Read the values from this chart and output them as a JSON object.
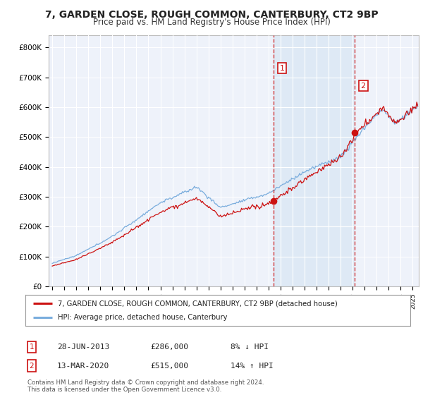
{
  "title": "7, GARDEN CLOSE, ROUGH COMMON, CANTERBURY, CT2 9BP",
  "subtitle": "Price paid vs. HM Land Registry's House Price Index (HPI)",
  "title_fontsize": 10,
  "subtitle_fontsize": 8.5,
  "background_color": "#ffffff",
  "plot_bg_color": "#eef2fa",
  "plot_bg_color2": "#dde8f5",
  "grid_color": "#ffffff",
  "line1_color": "#cc1111",
  "line2_color": "#7aaddd",
  "ylim": [
    0,
    840000
  ],
  "yticks": [
    0,
    100000,
    200000,
    300000,
    400000,
    500000,
    600000,
    700000,
    800000
  ],
  "ytick_labels": [
    "£0",
    "£100K",
    "£200K",
    "£300K",
    "£400K",
    "£500K",
    "£600K",
    "£700K",
    "£800K"
  ],
  "legend1": "7, GARDEN CLOSE, ROUGH COMMON, CANTERBURY, CT2 9BP (detached house)",
  "legend2": "HPI: Average price, detached house, Canterbury",
  "ann1_year": 2013,
  "ann1_month": 6,
  "ann1_price": 286000,
  "ann1_label": "1",
  "ann1_date": "28-JUN-2013",
  "ann1_price_str": "£286,000",
  "ann1_hpi": "8% ↓ HPI",
  "ann2_year": 2020,
  "ann2_month": 3,
  "ann2_price": 515000,
  "ann2_label": "2",
  "ann2_date": "13-MAR-2020",
  "ann2_price_str": "£515,000",
  "ann2_hpi": "14% ↑ HPI",
  "footer": "Contains HM Land Registry data © Crown copyright and database right 2024.\nThis data is licensed under the Open Government Licence v3.0.",
  "xstart_year": 1995,
  "xend_year": 2025
}
